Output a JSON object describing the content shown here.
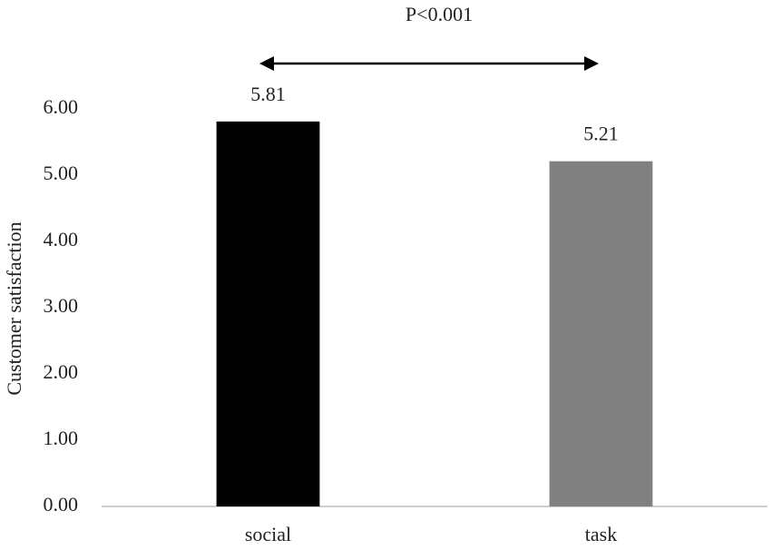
{
  "chart_data": {
    "type": "bar",
    "y_label": "Customer satisfaction",
    "annotation": "P<0.001",
    "categories": [
      "social",
      "task"
    ],
    "values": [
      5.81,
      5.21
    ],
    "colors": [
      "#000000",
      "#808080"
    ],
    "ylim": [
      0,
      6
    ],
    "yticks": [
      {
        "value": 0,
        "label": "0.00"
      },
      {
        "value": 1,
        "label": "1.00"
      },
      {
        "value": 2,
        "label": "2.00"
      },
      {
        "value": 3,
        "label": "3.00"
      },
      {
        "value": 4,
        "label": "4.00"
      },
      {
        "value": 5,
        "label": "5.00"
      },
      {
        "value": 6,
        "label": "6.00"
      }
    ],
    "grid": false
  }
}
